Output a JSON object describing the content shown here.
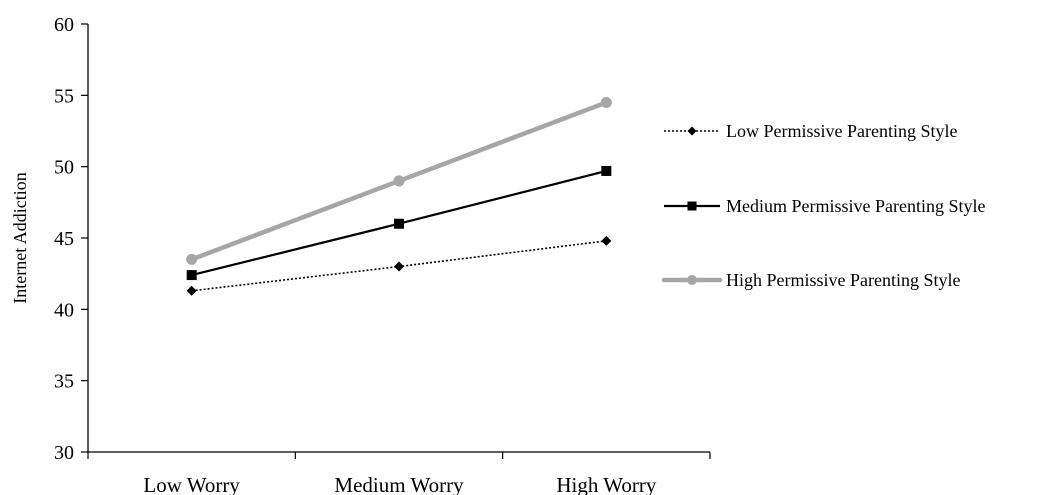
{
  "chart_data": {
    "type": "line",
    "categories": [
      "Low Worry",
      "Medium Worry",
      "High Worry"
    ],
    "series": [
      {
        "name": "Low Permissive Parenting  Style",
        "values": [
          41.3,
          43.0,
          44.8
        ],
        "color": "#000000",
        "line_style": "dotted",
        "marker": "diamond"
      },
      {
        "name": "Medium Permissive Parenting  Style",
        "values": [
          42.4,
          46.0,
          49.7
        ],
        "color": "#000000",
        "line_style": "solid",
        "marker": "square"
      },
      {
        "name": "High Permissive Parenting  Style",
        "values": [
          43.5,
          49.0,
          54.5
        ],
        "color": "#a6a6a6",
        "line_style": "solid-thick",
        "marker": "circle"
      }
    ],
    "ylabel": "Internet Addiction",
    "ylim": [
      30,
      60
    ],
    "yticks": [
      30,
      35,
      40,
      45,
      50,
      55,
      60
    ],
    "grid": false,
    "legend_position": "right"
  }
}
